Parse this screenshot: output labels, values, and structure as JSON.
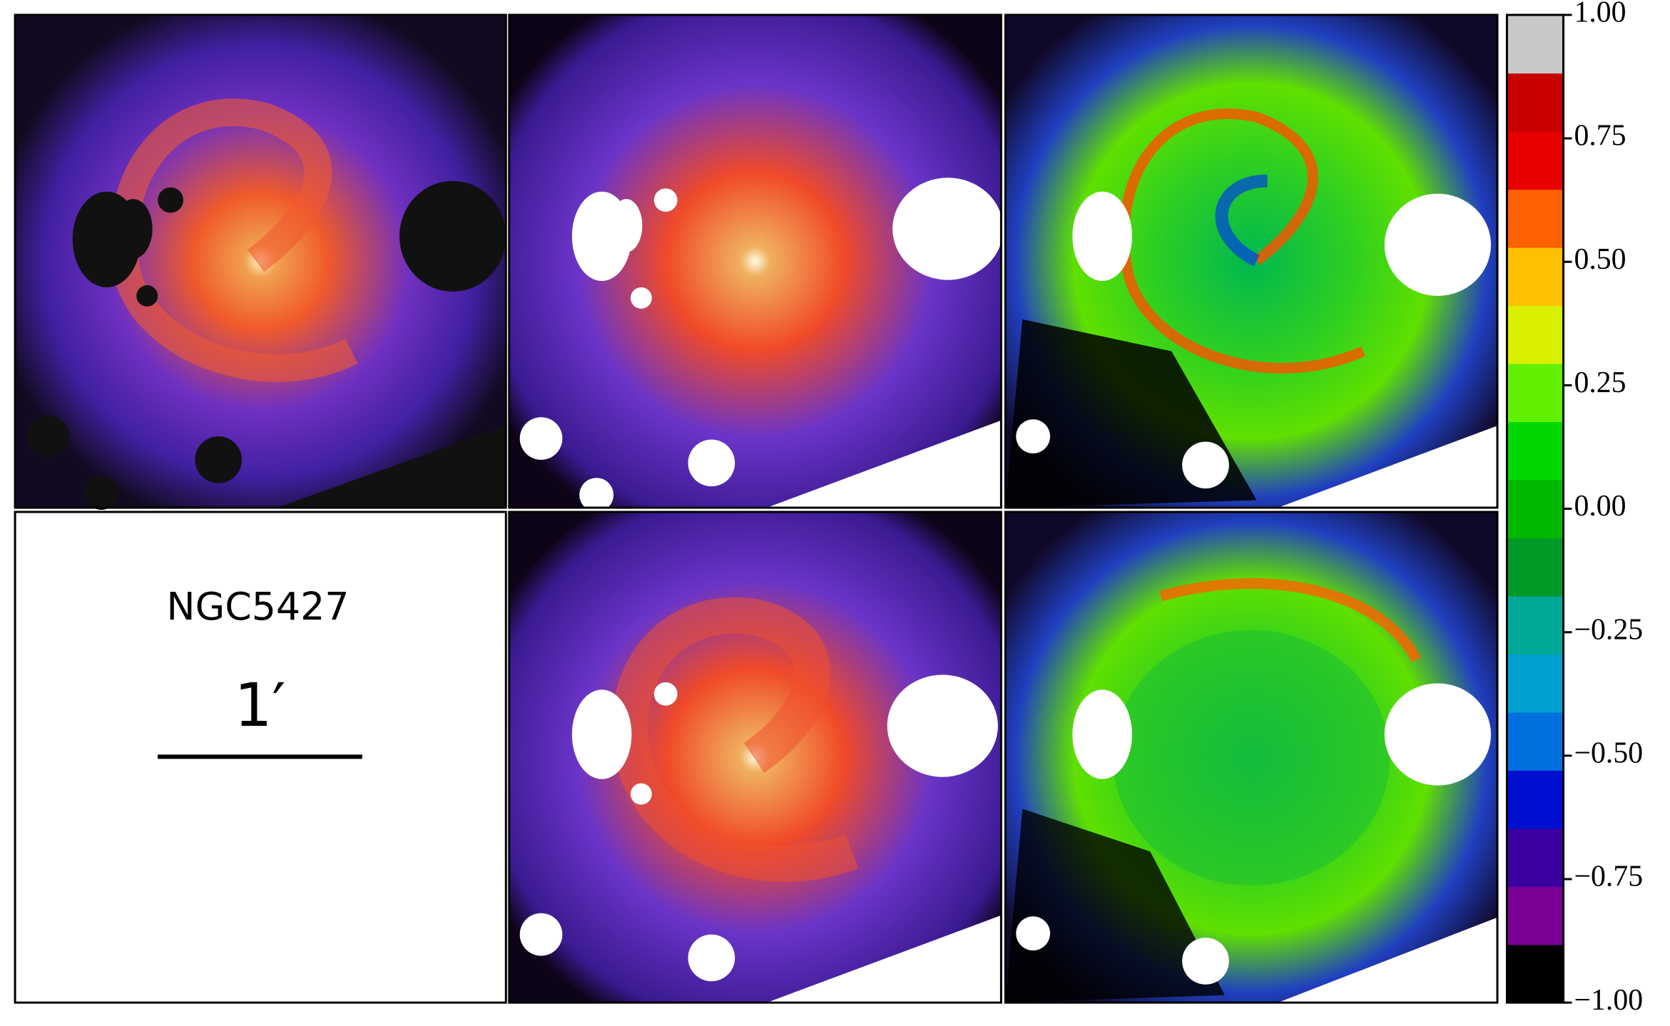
{
  "panel": {
    "galaxy": "NGC5427",
    "scale": "1′"
  },
  "colorbar": {
    "lim": [
      -1,
      1
    ],
    "ticks": [
      {
        "value": -1,
        "label": "−1.00"
      },
      {
        "value": -0.75,
        "label": "−0.75"
      },
      {
        "value": -0.5,
        "label": "−0.50"
      },
      {
        "value": -0.25,
        "label": "−0.25"
      },
      {
        "value": 0,
        "label": "0.00"
      },
      {
        "value": 0.25,
        "label": "0.25"
      },
      {
        "value": 0.5,
        "label": "0.50"
      },
      {
        "value": 0.75,
        "label": "0.75"
      },
      {
        "value": 1,
        "label": "1.00"
      }
    ],
    "colors": [
      "#000000",
      "#7a0096",
      "#3a00a0",
      "#0010d0",
      "#0070e0",
      "#00a0d0",
      "#00a898",
      "#009a28",
      "#00b800",
      "#00d800",
      "#60f000",
      "#d8f000",
      "#ffc000",
      "#ff6000",
      "#e80000",
      "#c80000",
      "#c8c8c8"
    ]
  }
}
